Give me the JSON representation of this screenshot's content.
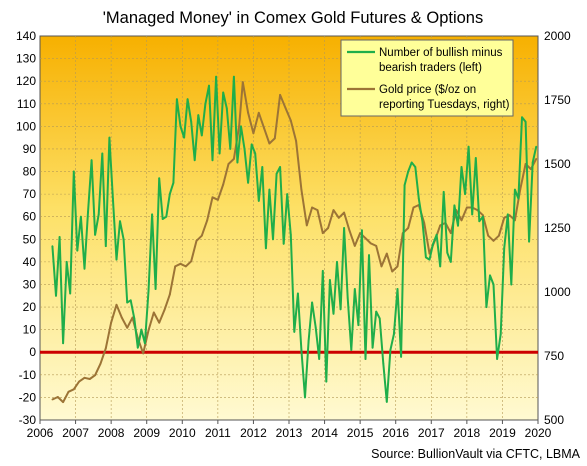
{
  "chart_data": {
    "type": "line",
    "title": "'Managed Money' in Comex Gold Futures & Options",
    "source": "Source: BullionVault via CFTC, LBMA",
    "x_ticks": [
      "2006",
      "2007",
      "2008",
      "2009",
      "2010",
      "2011",
      "2012",
      "2013",
      "2014",
      "2015",
      "2016",
      "2017",
      "2018",
      "2019",
      "2020"
    ],
    "xlim": [
      2006,
      2020
    ],
    "y_left_ticks": [
      "140",
      "130",
      "120",
      "110",
      "100",
      "90",
      "80",
      "70",
      "60",
      "50",
      "40",
      "30",
      "20",
      "10",
      "0",
      "-10",
      "-20",
      "-30"
    ],
    "y_left_range": [
      -30,
      140
    ],
    "y_right_ticks": [
      "2000",
      "1750",
      "1500",
      "1250",
      "1000",
      "750",
      "500"
    ],
    "y_right_range": [
      500,
      2000
    ],
    "grid": true,
    "legend_position": "top-right",
    "reference_line": {
      "value": 0,
      "axis": "left",
      "color": "#cc0000"
    },
    "colors": {
      "traders": "#1fae4a",
      "gold": "#9c7436",
      "background_top": "#f7b000",
      "background_bottom": "#fffacf",
      "zero_line": "#cc0000",
      "legend_box": "#ffff99"
    },
    "series": [
      {
        "name": "Number of bullish minus bearish traders (left)",
        "axis": "left",
        "x": [
          2006.35,
          2006.45,
          2006.55,
          2006.65,
          2006.75,
          2006.85,
          2006.95,
          2007.05,
          2007.15,
          2007.25,
          2007.35,
          2007.45,
          2007.55,
          2007.65,
          2007.75,
          2007.85,
          2007.95,
          2008.05,
          2008.15,
          2008.25,
          2008.35,
          2008.45,
          2008.55,
          2008.65,
          2008.75,
          2008.85,
          2008.95,
          2009.05,
          2009.15,
          2009.25,
          2009.35,
          2009.45,
          2009.55,
          2009.65,
          2009.75,
          2009.85,
          2009.95,
          2010.05,
          2010.15,
          2010.25,
          2010.35,
          2010.45,
          2010.55,
          2010.65,
          2010.75,
          2010.85,
          2010.95,
          2011.05,
          2011.15,
          2011.25,
          2011.35,
          2011.45,
          2011.55,
          2011.65,
          2011.75,
          2011.85,
          2011.95,
          2012.05,
          2012.15,
          2012.25,
          2012.35,
          2012.45,
          2012.55,
          2012.65,
          2012.75,
          2012.85,
          2012.95,
          2013.05,
          2013.15,
          2013.25,
          2013.35,
          2013.45,
          2013.55,
          2013.65,
          2013.75,
          2013.85,
          2013.95,
          2014.05,
          2014.15,
          2014.25,
          2014.35,
          2014.45,
          2014.55,
          2014.65,
          2014.75,
          2014.85,
          2014.95,
          2015.05,
          2015.15,
          2015.25,
          2015.35,
          2015.45,
          2015.55,
          2015.65,
          2015.75,
          2015.85,
          2015.95,
          2016.05,
          2016.15,
          2016.25,
          2016.35,
          2016.45,
          2016.55,
          2016.65,
          2016.75,
          2016.85,
          2016.95,
          2017.05,
          2017.15,
          2017.25,
          2017.35,
          2017.45,
          2017.55,
          2017.65,
          2017.75,
          2017.85,
          2017.95,
          2018.05,
          2018.15,
          2018.25,
          2018.35,
          2018.45,
          2018.55,
          2018.65,
          2018.75,
          2018.85,
          2018.95,
          2019.05,
          2019.15,
          2019.25,
          2019.35,
          2019.45,
          2019.55,
          2019.65,
          2019.75,
          2019.85,
          2019.95
        ],
        "values": [
          47,
          25,
          51,
          4,
          40,
          26,
          80,
          45,
          60,
          37,
          62,
          85,
          52,
          61,
          88,
          47,
          95,
          68,
          41,
          58,
          50,
          22,
          23,
          15,
          2,
          10,
          4,
          27,
          61,
          28,
          77,
          59,
          60,
          70,
          75,
          112,
          100,
          95,
          112,
          102,
          85,
          105,
          96,
          110,
          118,
          85,
          122,
          88,
          115,
          108,
          90,
          122,
          84,
          100,
          90,
          75,
          92,
          88,
          67,
          82,
          46,
          72,
          50,
          79,
          82,
          48,
          70,
          52,
          9,
          26,
          1,
          -20,
          5,
          22,
          11,
          -3,
          36,
          -13,
          32,
          17,
          40,
          19,
          55,
          24,
          1,
          28,
          12,
          54,
          -3,
          43,
          2,
          18,
          15,
          -5,
          -22,
          1,
          8,
          28,
          -2,
          74,
          80,
          84,
          82,
          68,
          58,
          42,
          41,
          48,
          52,
          38,
          71,
          44,
          40,
          65,
          56,
          82,
          70,
          91,
          61,
          86,
          58,
          60,
          20,
          34,
          30,
          -3,
          8,
          46,
          61,
          30,
          72,
          68,
          104,
          102,
          49,
          84,
          91
        ]
      },
      {
        "name": "Gold price ($/oz on reporting Tuesdays, right)",
        "axis": "right",
        "x": [
          2006.35,
          2006.5,
          2006.65,
          2006.8,
          2006.95,
          2007.1,
          2007.25,
          2007.4,
          2007.55,
          2007.7,
          2007.85,
          2008.0,
          2008.15,
          2008.3,
          2008.45,
          2008.6,
          2008.75,
          2008.9,
          2009.05,
          2009.2,
          2009.35,
          2009.5,
          2009.65,
          2009.8,
          2009.95,
          2010.1,
          2010.25,
          2010.4,
          2010.55,
          2010.7,
          2010.85,
          2011.0,
          2011.15,
          2011.3,
          2011.45,
          2011.6,
          2011.7,
          2011.85,
          2012.0,
          2012.15,
          2012.3,
          2012.45,
          2012.6,
          2012.75,
          2012.9,
          2013.05,
          2013.2,
          2013.35,
          2013.5,
          2013.65,
          2013.8,
          2013.95,
          2014.1,
          2014.25,
          2014.4,
          2014.55,
          2014.7,
          2014.85,
          2015.0,
          2015.15,
          2015.3,
          2015.45,
          2015.6,
          2015.75,
          2015.9,
          2016.05,
          2016.2,
          2016.35,
          2016.5,
          2016.65,
          2016.8,
          2016.95,
          2017.1,
          2017.25,
          2017.4,
          2017.55,
          2017.7,
          2017.85,
          2018.0,
          2018.15,
          2018.3,
          2018.45,
          2018.6,
          2018.75,
          2018.9,
          2019.05,
          2019.2,
          2019.35,
          2019.5,
          2019.65,
          2019.8,
          2019.95
        ],
        "values": [
          580,
          590,
          570,
          610,
          620,
          650,
          665,
          660,
          675,
          720,
          780,
          880,
          950,
          900,
          860,
          900,
          820,
          760,
          850,
          920,
          880,
          930,
          990,
          1100,
          1110,
          1100,
          1120,
          1200,
          1220,
          1280,
          1370,
          1360,
          1420,
          1500,
          1520,
          1650,
          1820,
          1700,
          1620,
          1700,
          1640,
          1580,
          1600,
          1770,
          1720,
          1670,
          1590,
          1400,
          1260,
          1330,
          1320,
          1230,
          1250,
          1320,
          1290,
          1310,
          1240,
          1180,
          1230,
          1210,
          1190,
          1180,
          1100,
          1150,
          1080,
          1100,
          1230,
          1250,
          1330,
          1340,
          1270,
          1150,
          1200,
          1260,
          1270,
          1230,
          1320,
          1280,
          1330,
          1330,
          1320,
          1300,
          1220,
          1200,
          1220,
          1290,
          1300,
          1280,
          1400,
          1500,
          1480,
          1520
        ]
      }
    ]
  }
}
